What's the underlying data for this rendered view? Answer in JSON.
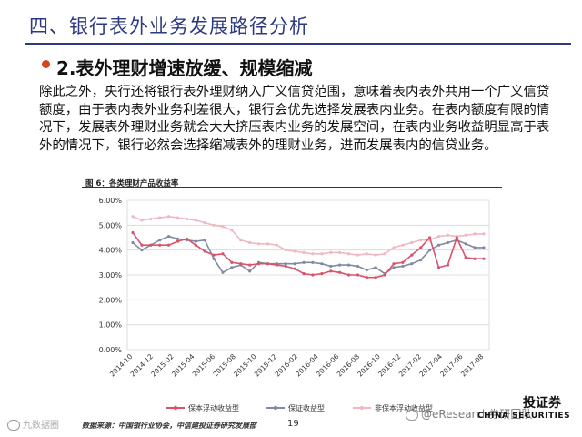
{
  "slide": {
    "title": "四、银行表外业务发展路径分析",
    "subtitle": "2.表外理财增速放缓、规模缩减",
    "paragraph": "除此之外，央行还将银行表外理财纳入广义信贷范围，意味着表内表外共用一个广义信贷额度，由于表内表外业务利差很大，银行会优先选择发展表内业务。在表内额度有限的情况下，发展表外理财业务就会大大挤压表内业务的发展空间，在表内业务收益明显高于表外的情况下，银行必然会选择缩减表外的理财业务，进而发展表内的信贷业务。",
    "figure_title": "图 6：各类理财产品收益率",
    "source": "数据来源：中国银行业协会，中信建投证券研究发展部",
    "page_number": "19",
    "logo_cn": "投证券",
    "logo_en": "CHINA SECURITIES",
    "watermark_right": "@eResearch券研团队",
    "watermark_left": "九数据圈",
    "accent_color": "#2d3a82",
    "bullet_color": "#d8431f"
  },
  "chart_data": {
    "type": "line",
    "title": "",
    "xlabel": "",
    "ylabel": "",
    "ylim": [
      0,
      0.06
    ],
    "y_ticks": [
      "0.00%",
      "1.00%",
      "2.00%",
      "3.00%",
      "4.00%",
      "5.00%",
      "6.00%"
    ],
    "x_tick_labels": [
      "2014-10",
      "2014-12",
      "2015-02",
      "2015-04",
      "2015-06",
      "2015-08",
      "2015-10",
      "2015-12",
      "2016-02",
      "2016-04",
      "2016-06",
      "2016-08",
      "2016-10",
      "2016-12",
      "2017-02",
      "2017-04",
      "2017-06",
      "2017-08"
    ],
    "legend_position": "bottom",
    "gridlines": true,
    "series": [
      {
        "name": "保本浮动收益型",
        "color": "#d9536b",
        "values": [
          0.047,
          0.042,
          0.042,
          0.042,
          0.042,
          0.0435,
          0.0445,
          0.042,
          0.0395,
          0.038,
          0.0385,
          0.035,
          0.0345,
          0.034,
          0.0345,
          0.0345,
          0.034,
          0.0335,
          0.0325,
          0.0305,
          0.03,
          0.0305,
          0.0315,
          0.031,
          0.03,
          0.03,
          0.029,
          0.029,
          0.03,
          0.0345,
          0.035,
          0.038,
          0.041,
          0.045,
          0.033,
          0.034,
          0.045,
          0.037,
          0.0365,
          0.0365
        ]
      },
      {
        "name": "保证收益型",
        "color": "#7f8aa3",
        "values": [
          0.043,
          0.04,
          0.042,
          0.044,
          0.0455,
          0.0445,
          0.044,
          0.0435,
          0.044,
          0.0365,
          0.031,
          0.033,
          0.034,
          0.0315,
          0.035,
          0.0345,
          0.0345,
          0.0345,
          0.0345,
          0.035,
          0.035,
          0.0345,
          0.0335,
          0.034,
          0.034,
          0.0335,
          0.032,
          0.033,
          0.0305,
          0.033,
          0.0335,
          0.0345,
          0.036,
          0.04,
          0.042,
          0.043,
          0.044,
          0.0425,
          0.041,
          0.041
        ]
      },
      {
        "name": "非保本浮动收益型",
        "color": "#f0b8c2",
        "values": [
          0.0535,
          0.052,
          0.0525,
          0.053,
          0.0535,
          0.053,
          0.0525,
          0.052,
          0.051,
          0.05,
          0.0495,
          0.048,
          0.044,
          0.043,
          0.0425,
          0.0425,
          0.042,
          0.04,
          0.0395,
          0.039,
          0.0385,
          0.0385,
          0.039,
          0.039,
          0.0385,
          0.038,
          0.0385,
          0.038,
          0.0385,
          0.041,
          0.042,
          0.043,
          0.044,
          0.044,
          0.0455,
          0.046,
          0.0455,
          0.046,
          0.0465,
          0.0465
        ]
      }
    ]
  }
}
